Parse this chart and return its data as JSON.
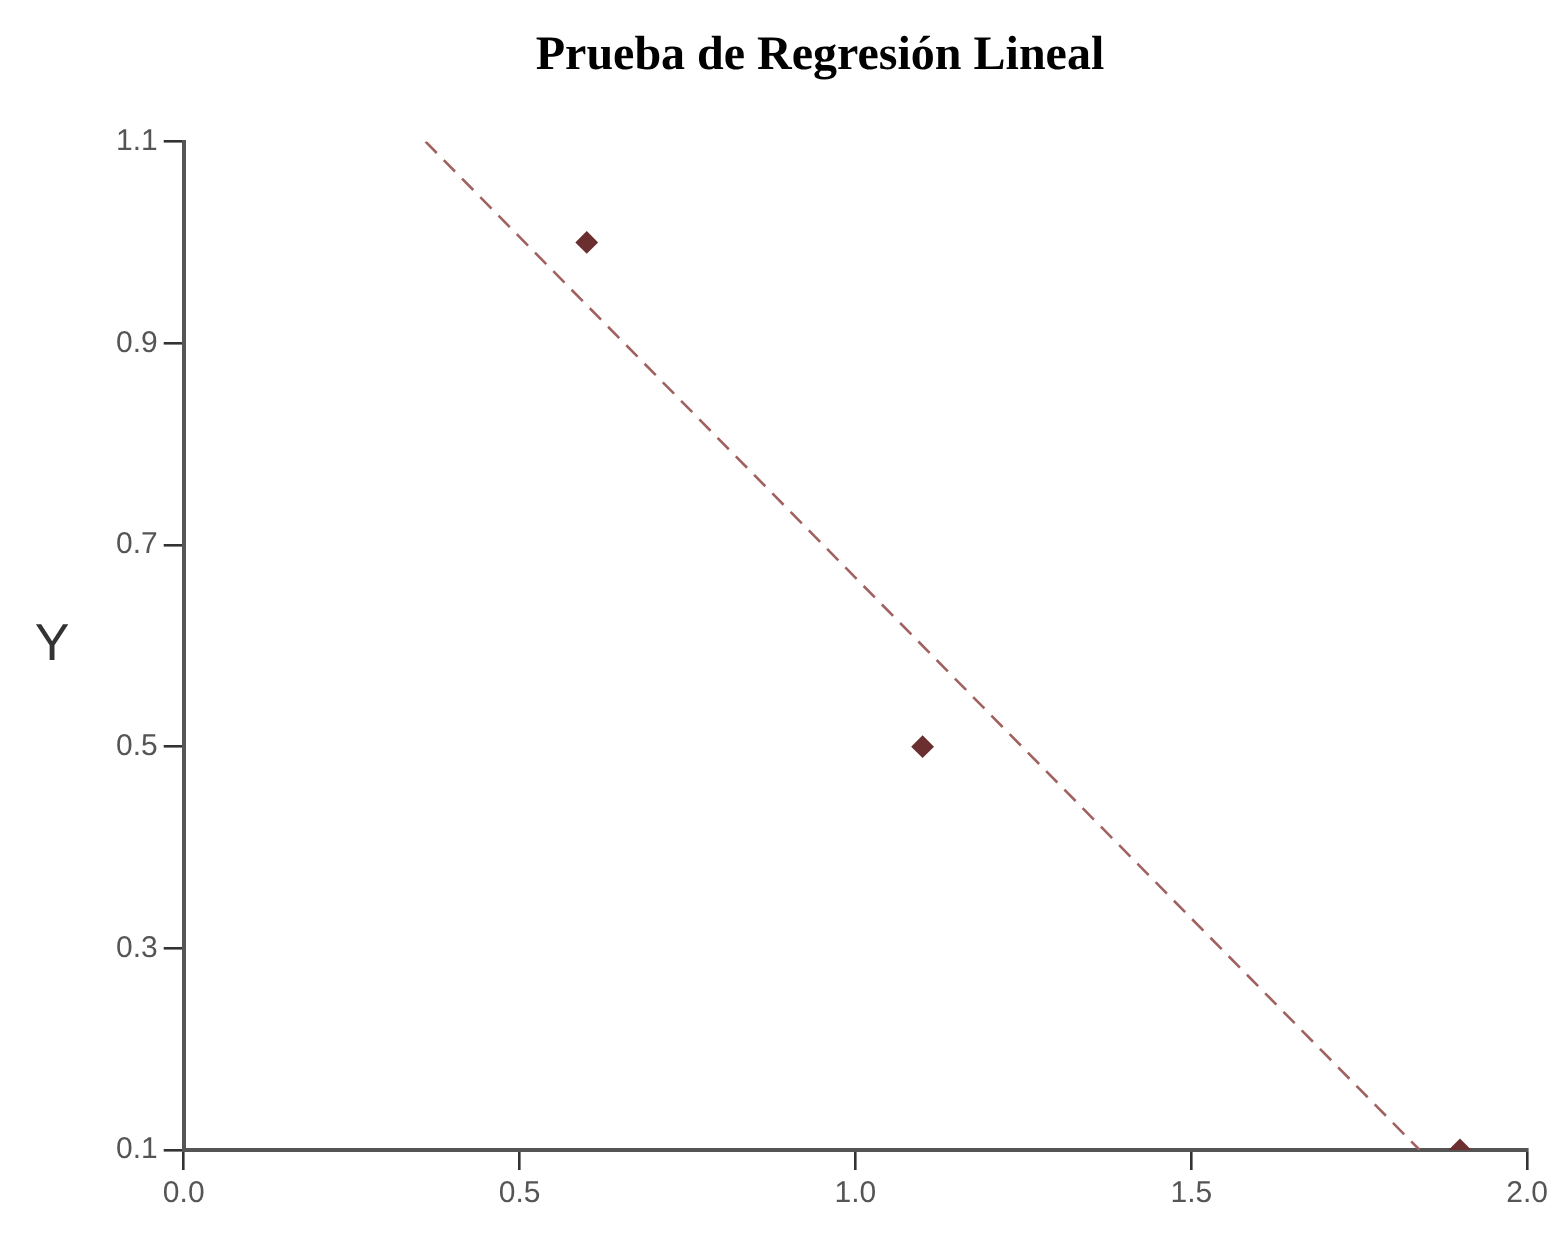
{
  "chart_data": {
    "type": "scatter",
    "title": "Prueba de Regresión Lineal",
    "ylabel": "Y",
    "xlim": [
      0,
      2
    ],
    "ylim": [
      0.1,
      1.1
    ],
    "xticks": [
      {
        "value": 0,
        "label": "0.0"
      },
      {
        "value": 0.5,
        "label": "0.5"
      },
      {
        "value": 1,
        "label": "1.0"
      },
      {
        "value": 1.5,
        "label": "1.5"
      },
      {
        "value": 2,
        "label": "2.0"
      }
    ],
    "yticks": [
      0.1,
      0.3,
      0.5,
      0.7,
      0.9,
      1.1
    ],
    "series": [
      {
        "type": "scatter",
        "color": "#6b2f2f",
        "x": [
          0.6,
          1.1,
          1.9
        ],
        "values": [
          1.0,
          0.5,
          0.1
        ],
        "marker": "diamond"
      },
      {
        "type": "line",
        "color": "#a0615f",
        "x": [
          0.36,
          1.84
        ],
        "values": [
          1.1,
          0.1
        ],
        "marker": "none",
        "line_style": "dashed"
      }
    ]
  }
}
